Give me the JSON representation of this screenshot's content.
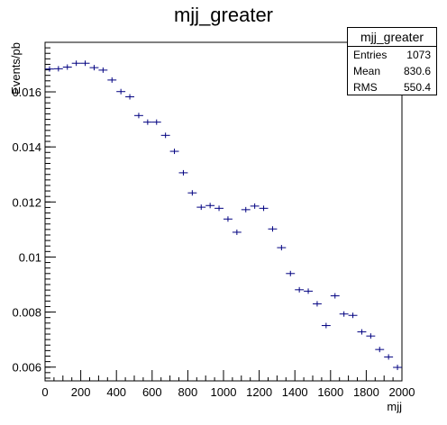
{
  "chart_data": {
    "type": "scatter",
    "title": "mjj_greater",
    "xlabel": "mjj",
    "ylabel": "Events/pb",
    "xlim": [
      0,
      2000
    ],
    "ylim": [
      0.0055,
      0.0178
    ],
    "xticks": [
      0,
      200,
      400,
      600,
      800,
      1000,
      1200,
      1400,
      1600,
      1800,
      2000
    ],
    "yticks": [
      0.006,
      0.008,
      0.01,
      0.012,
      0.014,
      0.016
    ],
    "ytick_labels": [
      "0.006",
      "0.008",
      "0.01",
      "0.012",
      "0.014",
      "0.016"
    ],
    "bin_width": 50,
    "marker_color": "#000080",
    "x": [
      25,
      75,
      125,
      175,
      225,
      275,
      325,
      375,
      425,
      475,
      525,
      575,
      625,
      675,
      725,
      775,
      825,
      875,
      925,
      975,
      1025,
      1075,
      1125,
      1175,
      1225,
      1275,
      1325,
      1375,
      1425,
      1475,
      1525,
      1575,
      1625,
      1675,
      1725,
      1775,
      1825,
      1875,
      1925,
      1975
    ],
    "y": [
      0.01683,
      0.01684,
      0.0169,
      0.01704,
      0.01704,
      0.01688,
      0.01679,
      0.01643,
      0.01601,
      0.01582,
      0.01514,
      0.0149,
      0.0149,
      0.01442,
      0.01384,
      0.01306,
      0.01233,
      0.01181,
      0.01187,
      0.01177,
      0.01138,
      0.0109,
      0.01172,
      0.01185,
      0.01177,
      0.01102,
      0.01034,
      0.0094,
      0.00881,
      0.00876,
      0.0083,
      0.00751,
      0.00859,
      0.00793,
      0.00788,
      0.00728,
      0.00713,
      0.00664,
      0.00637,
      0.00599
    ],
    "legend": {
      "title": "mjj_greater",
      "placement": "top-right",
      "rows": [
        {
          "label": "Entries",
          "value": "1073"
        },
        {
          "label": "Mean",
          "value": "830.6"
        },
        {
          "label": "RMS",
          "value": "550.4"
        }
      ]
    }
  }
}
